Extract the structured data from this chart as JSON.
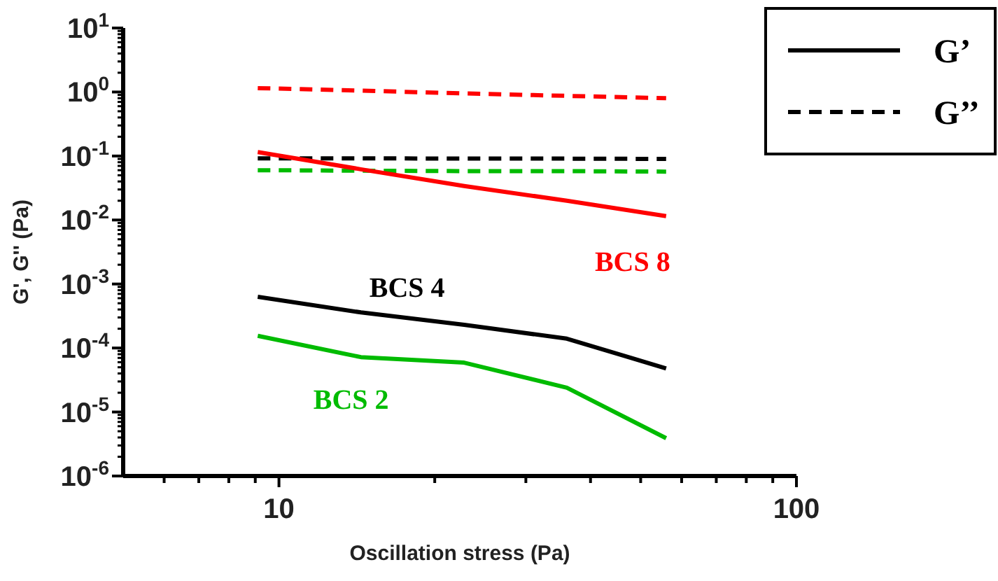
{
  "chart_data": {
    "type": "line",
    "xlabel": "Oscillation stress (Pa)",
    "ylabel": "G', G'' (Pa)",
    "log": "xy",
    "xlim": [
      5,
      100
    ],
    "xticks": [
      {
        "value": 6,
        "label": null
      },
      {
        "value": 7,
        "label": null
      },
      {
        "value": 8,
        "label": null
      },
      {
        "value": 9,
        "label": null
      },
      10,
      {
        "value": 20,
        "label": null
      },
      {
        "value": 30,
        "label": null
      },
      {
        "value": 40,
        "label": null
      },
      {
        "value": 50,
        "label": null
      },
      {
        "value": 60,
        "label": null
      },
      {
        "value": 70,
        "label": null
      },
      {
        "value": 80,
        "label": null
      },
      {
        "value": 90,
        "label": null
      },
      100
    ],
    "ylim": [
      1e-06,
      10
    ],
    "yticks": [
      {
        "value": 1e-06,
        "label": "10$^{-6}$"
      },
      {
        "value": 1e-05,
        "label": "10$^{-5}$"
      },
      {
        "value": 0.0001,
        "label": "10$^{-4}$"
      },
      {
        "value": 0.001,
        "label": "10$^{-3}$"
      },
      {
        "value": 0.01,
        "label": "10$^{-2}$"
      },
      {
        "value": 0.1,
        "label": "10$^{-1}$"
      },
      {
        "value": 1,
        "label": "10$^{0}$"
      },
      {
        "value": 10,
        "label": "10$^{1}$"
      }
    ],
    "x": [
      9.1,
      14.4,
      22.8,
      36,
      56
    ],
    "legend": "top right",
    "grid": false,
    "series": [
      {
        "color": "#ff0000",
        "line_style": "dashed",
        "values": [
          1.15,
          1.05,
          0.95,
          0.87,
          0.8
        ]
      },
      {
        "name": "G’’",
        "color": "#000000",
        "line_style": "dashed",
        "values": [
          0.092,
          0.092,
          0.091,
          0.091,
          0.09
        ]
      },
      {
        "color": "#00bb00",
        "line_style": "dashed",
        "values": [
          0.06,
          0.059,
          0.058,
          0.058,
          0.057
        ]
      },
      {
        "color": "#ff0000",
        "line_style": "solid",
        "values": [
          0.115,
          0.062,
          0.034,
          0.02,
          0.0115
        ]
      },
      {
        "name": "G’",
        "color": "#000000",
        "line_style": "solid",
        "values": [
          0.00063,
          0.00036,
          0.00023,
          0.00014,
          4.8e-05
        ]
      },
      {
        "color": "#00bb00",
        "line_style": "solid",
        "values": [
          0.000155,
          7.2e-05,
          5.9e-05,
          2.4e-05,
          3.9e-06
        ]
      }
    ],
    "annotations": [
      "BCS 8",
      "BCS 4",
      "BCS 2"
    ]
  }
}
